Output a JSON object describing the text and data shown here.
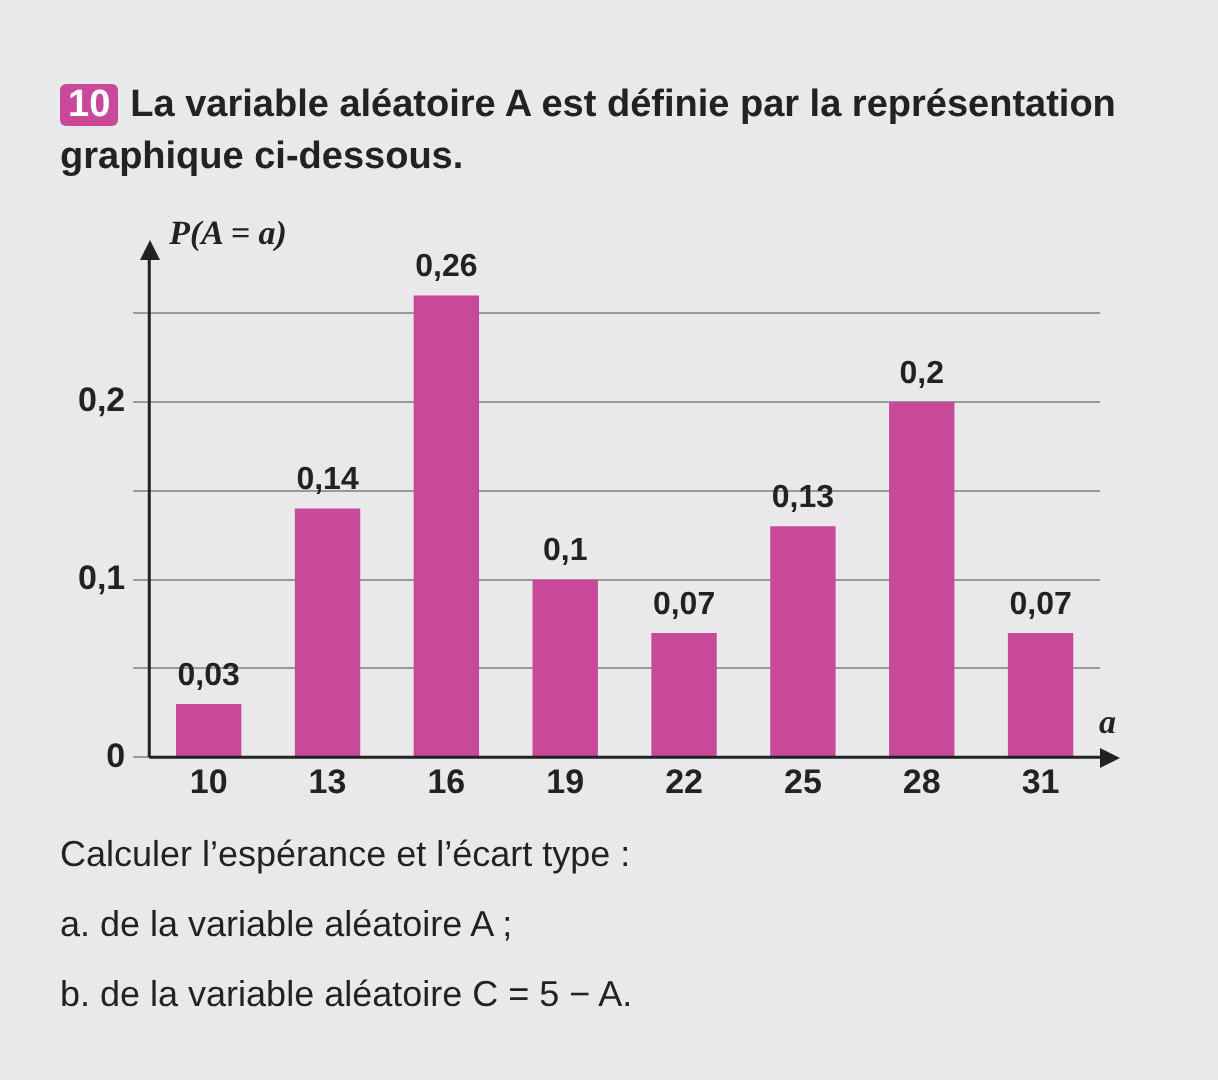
{
  "chart_data": {
    "type": "bar",
    "title": "La variable aléatoire A est définie par la représentation graphique ci-dessous.",
    "xlabel": "a",
    "ylabel": "P(A = a)",
    "categories": [
      "10",
      "13",
      "16",
      "19",
      "22",
      "25",
      "28",
      "31"
    ],
    "values": [
      0.03,
      0.14,
      0.26,
      0.1,
      0.07,
      0.13,
      0.2,
      0.07
    ],
    "value_labels": [
      "0,03",
      "0,14",
      "0,26",
      "0,1",
      "0,07",
      "0,13",
      "0,2",
      "0,07"
    ],
    "color": "#c8489a",
    "ylim": [
      0,
      0.28
    ],
    "yticks": [
      {
        "value": 0,
        "label": "0"
      },
      {
        "value": 0.05,
        "label": null
      },
      {
        "value": 0.1,
        "label": "0,1"
      },
      {
        "value": 0.15,
        "label": null
      },
      {
        "value": 0.2,
        "label": "0,2"
      },
      {
        "value": 0.25,
        "label": null
      }
    ],
    "grid": "y",
    "legend": false,
    "annotations": [
      "10",
      "Calculer l’espérance et l’écart type :",
      "a. de la variable aléatoire A ;",
      "b. de la variable aléatoire C = 5 − A."
    ]
  }
}
